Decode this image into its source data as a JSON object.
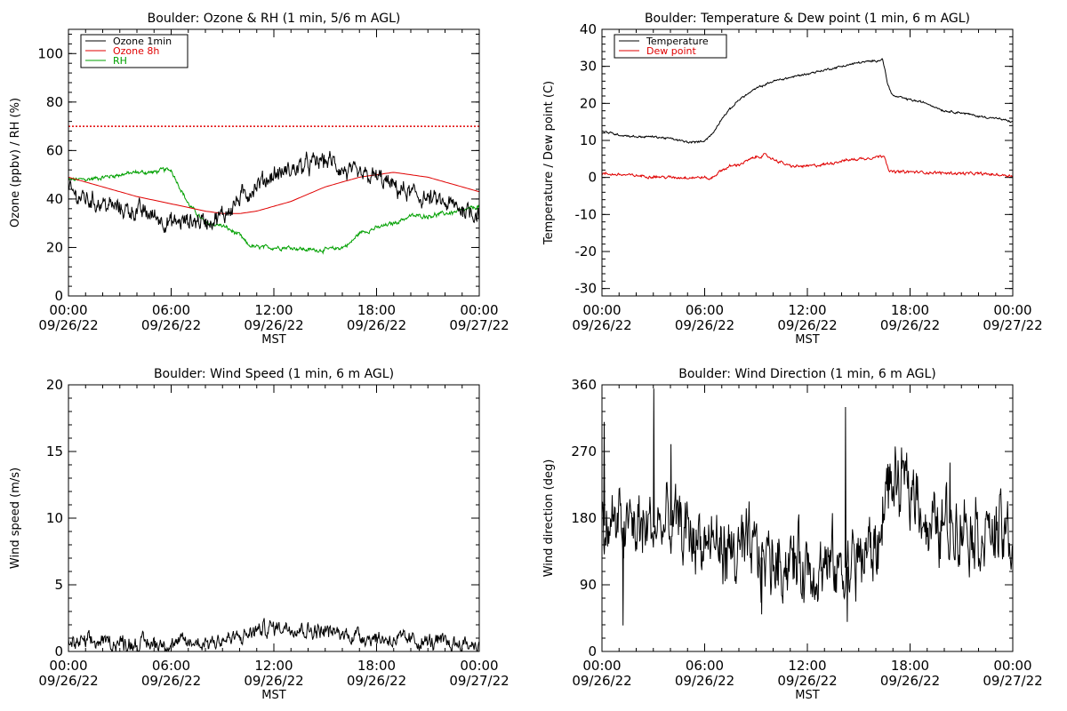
{
  "chart_data": [
    {
      "type": "line",
      "title": "Boulder: Ozone & RH (1 min, 5/6 m AGL)",
      "xlabel": "MST",
      "ylabel": "Ozone (ppbv) / RH (%)",
      "xlim": [
        0,
        24
      ],
      "ylim": [
        0,
        110
      ],
      "xticks": [
        {
          "v": 0,
          "l1": "00:00",
          "l2": "09/26/22"
        },
        {
          "v": 6,
          "l1": "06:00",
          "l2": "09/26/22"
        },
        {
          "v": 12,
          "l1": "12:00",
          "l2": "09/26/22"
        },
        {
          "v": 18,
          "l1": "18:00",
          "l2": "09/26/22"
        },
        {
          "v": 24,
          "l1": "00:00",
          "l2": "09/27/22"
        }
      ],
      "yticks": [
        0,
        20,
        40,
        60,
        80,
        100
      ],
      "grid": false,
      "legend": "top-left",
      "reference_line": {
        "y": 70,
        "color": "#e00000",
        "style": "dotted"
      },
      "series": [
        {
          "name": "Ozone 1min",
          "color": "#000000",
          "noise": 3.5,
          "x": [
            0,
            1,
            2,
            3,
            4,
            5,
            6,
            7,
            8,
            9,
            10,
            11,
            12,
            13,
            14,
            15,
            15.5,
            16,
            17,
            18,
            19,
            20,
            21,
            22,
            23,
            24
          ],
          "y": [
            43,
            40,
            38,
            36,
            35,
            33,
            30,
            31,
            31,
            33,
            40,
            46,
            50,
            52,
            54,
            56,
            55,
            52,
            49,
            49,
            45,
            42,
            40,
            38,
            36,
            34
          ]
        },
        {
          "name": "Ozone 8h",
          "color": "#e00000",
          "noise": 0,
          "x": [
            0,
            2,
            4,
            6,
            8,
            9,
            10,
            11,
            12,
            13,
            14,
            15,
            16,
            17,
            18,
            19,
            20,
            21,
            22,
            23,
            24
          ],
          "y": [
            49,
            45,
            41,
            38,
            35,
            34,
            34,
            35,
            37,
            39,
            42,
            45,
            47,
            49,
            50,
            51,
            50,
            49,
            47,
            45,
            43
          ]
        },
        {
          "name": "RH",
          "color": "#00a000",
          "noise": 0.8,
          "x": [
            0,
            1,
            2,
            3,
            4,
            5,
            5.5,
            6,
            7,
            8,
            9,
            10,
            10.5,
            11,
            12,
            13,
            14,
            15,
            16,
            16.5,
            17,
            18,
            19,
            20,
            21,
            22,
            23,
            24
          ],
          "y": [
            48,
            48,
            49,
            50,
            51,
            51,
            52,
            52,
            38,
            30,
            29,
            25,
            21,
            20,
            20,
            20,
            19,
            19,
            20,
            22,
            26,
            28,
            30,
            33,
            33,
            34,
            35,
            37
          ]
        }
      ]
    },
    {
      "type": "line",
      "title": "Boulder: Temperature & Dew point (1 min, 6 m AGL)",
      "xlabel": "MST",
      "ylabel": "Temperature / Dew point (C)",
      "xlim": [
        0,
        24
      ],
      "ylim": [
        -32,
        40
      ],
      "xticks": [
        {
          "v": 0,
          "l1": "00:00",
          "l2": "09/26/22"
        },
        {
          "v": 6,
          "l1": "06:00",
          "l2": "09/26/22"
        },
        {
          "v": 12,
          "l1": "12:00",
          "l2": "09/26/22"
        },
        {
          "v": 18,
          "l1": "18:00",
          "l2": "09/26/22"
        },
        {
          "v": 24,
          "l1": "00:00",
          "l2": "09/27/22"
        }
      ],
      "yticks": [
        -30,
        -20,
        -10,
        0,
        10,
        20,
        30,
        40
      ],
      "grid": false,
      "legend": "top-left",
      "series": [
        {
          "name": "Temperature",
          "color": "#000000",
          "noise": 0.25,
          "x": [
            0,
            1,
            2,
            3,
            4,
            5,
            5.5,
            6,
            6.5,
            7,
            8,
            9,
            10,
            11,
            12,
            13,
            14,
            15,
            16,
            16.4,
            16.7,
            17,
            18,
            19,
            20,
            21,
            22,
            23,
            24
          ],
          "y": [
            12.5,
            11.5,
            11,
            11,
            10.5,
            9.5,
            9.5,
            10,
            12,
            16,
            21,
            24,
            26,
            27,
            28,
            29,
            30,
            31,
            31.5,
            32,
            25,
            22,
            21,
            20,
            18,
            17.5,
            16.5,
            16,
            15
          ]
        },
        {
          "name": "Dew point",
          "color": "#e00000",
          "noise": 0.35,
          "x": [
            0,
            2,
            4,
            5,
            6,
            6.3,
            7,
            7.5,
            8,
            9,
            9.5,
            10,
            11,
            12,
            13,
            14,
            15,
            16,
            16.5,
            16.8,
            18,
            20,
            22,
            24
          ],
          "y": [
            1,
            0.5,
            0,
            0,
            0,
            -0.5,
            2,
            3,
            3.5,
            5.5,
            6,
            5,
            3,
            3,
            3.5,
            4.5,
            5,
            5.5,
            6,
            1.5,
            1.5,
            1.2,
            1,
            0.5
          ]
        }
      ]
    },
    {
      "type": "line",
      "title": "Boulder: Wind Speed (1 min, 6 m AGL)",
      "xlabel": "MST",
      "ylabel": "Wind speed (m/s)",
      "xlim": [
        0,
        24
      ],
      "ylim": [
        0,
        20
      ],
      "xticks": [
        {
          "v": 0,
          "l1": "00:00",
          "l2": "09/26/22"
        },
        {
          "v": 6,
          "l1": "06:00",
          "l2": "09/26/22"
        },
        {
          "v": 12,
          "l1": "12:00",
          "l2": "09/26/22"
        },
        {
          "v": 18,
          "l1": "18:00",
          "l2": "09/26/22"
        },
        {
          "v": 24,
          "l1": "00:00",
          "l2": "09/27/22"
        }
      ],
      "yticks": [
        0,
        5,
        10,
        15,
        20
      ],
      "grid": false,
      "series": [
        {
          "color": "#000000",
          "noise": 0.55,
          "floor": 0,
          "x": [
            0,
            2,
            4,
            6,
            8,
            10,
            11,
            12,
            13,
            14,
            15,
            16,
            17,
            18,
            20,
            22,
            24
          ],
          "y": [
            0.6,
            0.7,
            0.6,
            0.6,
            0.7,
            1.0,
            1.6,
            1.8,
            1.9,
            1.6,
            1.5,
            1.3,
            1.2,
            1.0,
            0.8,
            0.6,
            0.5
          ]
        }
      ]
    },
    {
      "type": "line",
      "title": "Boulder: Wind Direction (1 min, 6 m AGL)",
      "xlabel": "MST",
      "ylabel": "Wind direction (deg)",
      "xlim": [
        0,
        24
      ],
      "ylim": [
        0,
        360
      ],
      "xticks": [
        {
          "v": 0,
          "l1": "00:00",
          "l2": "09/26/22"
        },
        {
          "v": 6,
          "l1": "06:00",
          "l2": "09/26/22"
        },
        {
          "v": 12,
          "l1": "12:00",
          "l2": "09/26/22"
        },
        {
          "v": 18,
          "l1": "18:00",
          "l2": "09/26/22"
        },
        {
          "v": 24,
          "l1": "00:00",
          "l2": "09/27/22"
        }
      ],
      "yticks": [
        0,
        90,
        180,
        270,
        360
      ],
      "grid": false,
      "series": [
        {
          "color": "#000000",
          "noise": 45,
          "floor": 15,
          "ceil": 358,
          "x": [
            0,
            2,
            4,
            6,
            7,
            8,
            10,
            12,
            14,
            16,
            16.3,
            16.5,
            17,
            18,
            18.6,
            19,
            20,
            21,
            22,
            23,
            24
          ],
          "y": [
            170,
            165,
            170,
            150,
            140,
            130,
            125,
            120,
            110,
            140,
            150,
            225,
            220,
            220,
            215,
            160,
            170,
            180,
            165,
            160,
            150
          ]
        },
        {
          "color": "#000000",
          "noise": 0,
          "spikes": true,
          "x": [
            0.1,
            1.2,
            3.0,
            4.0,
            9.3,
            14.2,
            14.3,
            20.3
          ],
          "y": [
            310,
            35,
            355,
            280,
            50,
            330,
            40,
            255
          ]
        }
      ]
    }
  ]
}
